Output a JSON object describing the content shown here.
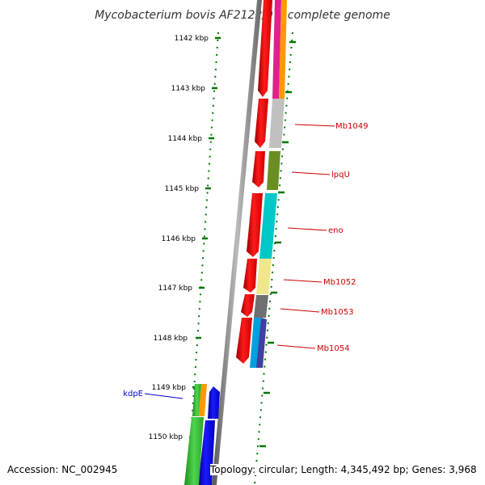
{
  "title": "Mycobacterium bovis AF2122/97, complete genome",
  "scale_labels": [
    "1142 kbp",
    "1143 kbp",
    "1144 kbp",
    "1145 kbp",
    "1146 kbp",
    "1147 kbp",
    "1148 kbp",
    "1149 kbp",
    "1150 kbp"
  ],
  "gene_labels": [
    "Mb1049",
    "lpqU",
    "eno",
    "Mb1052",
    "Mb1053",
    "Mb1054",
    "kdpE"
  ],
  "footer": {
    "accession": "Accession: NC_002945",
    "topology": "Topology: circular; Length: 4,345,492 bp; Genes: 3,968"
  },
  "colors": {
    "forward_strand": "#ff0000",
    "reverse_strand": "#0000ff",
    "tick": "#007700",
    "label_forward": "#cc0000",
    "label_reverse": "#0000cc"
  }
}
